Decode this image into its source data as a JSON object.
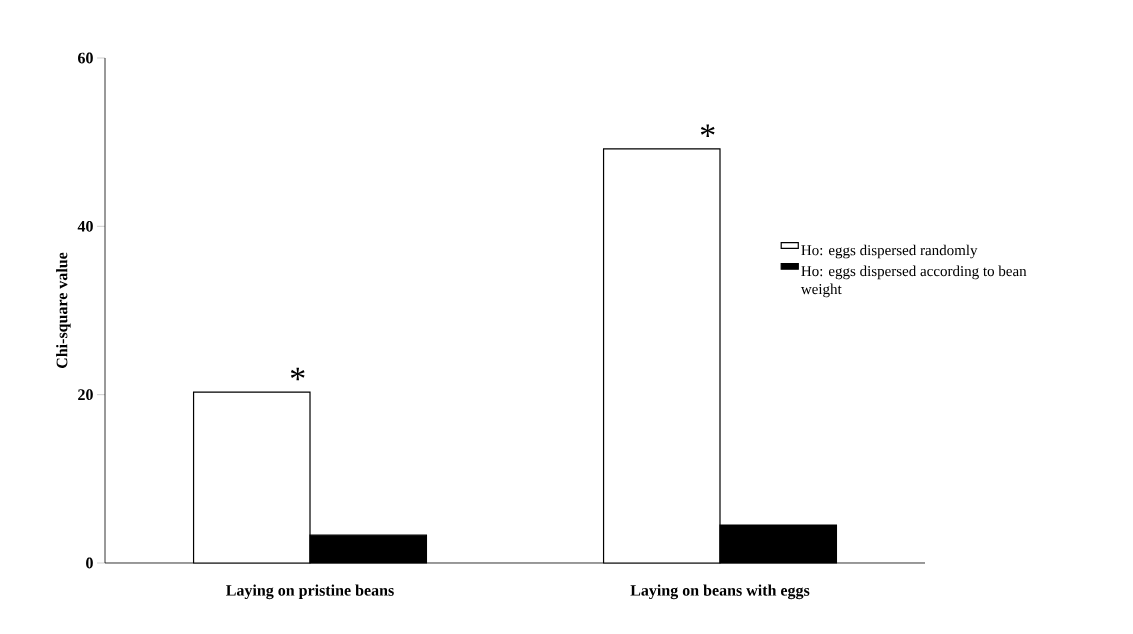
{
  "chart_data": {
    "type": "bar",
    "ylabel": "Chi-square value",
    "categories": [
      "Laying on pristine beans",
      "Laying on beans with eggs"
    ],
    "series": [
      {
        "name": "Ho: eggs dispersed randomly",
        "color": "#ffffff",
        "values": [
          20.3,
          49.2
        ]
      },
      {
        "name": "Ho: eggs dispersed according to bean weight",
        "color": "#000000",
        "values": [
          3.3,
          4.5
        ]
      }
    ],
    "ylim": [
      0,
      60
    ],
    "yticks": [
      0,
      20,
      40,
      60
    ],
    "legend": "right",
    "grid": false,
    "annotations": [
      {
        "text": "*",
        "x": "Laying on pristine beans",
        "y": 20.3
      },
      {
        "text": "*",
        "x": "Laying on beans with eggs",
        "y": 49.2
      }
    ]
  }
}
